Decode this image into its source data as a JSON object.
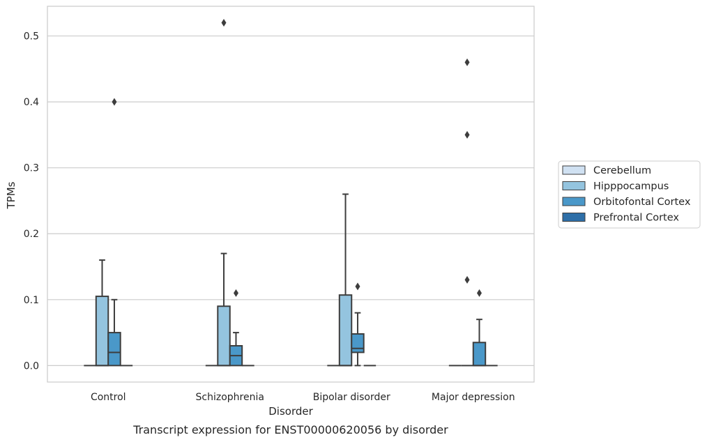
{
  "chart_data": {
    "type": "box",
    "title": "",
    "caption": "Transcript expression for ENST00000620056 by disorder",
    "xlabel": "Disorder",
    "ylabel": "TPMs",
    "ylim": [
      -0.025,
      0.545
    ],
    "yticks": [
      "0.0",
      "0.1",
      "0.2",
      "0.3",
      "0.4",
      "0.5"
    ],
    "grid": "horizontal",
    "legend_position": "right",
    "categories": [
      "Control",
      "Schizophrenia",
      "Bipolar disorder",
      "Major depression"
    ],
    "series": [
      {
        "name": "Cerebellum",
        "color": "#d0e1f2",
        "boxes": [
          {
            "q1": 0,
            "median": 0,
            "q3": 0,
            "whisker_low": 0,
            "whisker_high": 0,
            "outliers": []
          },
          {
            "q1": 0,
            "median": 0,
            "q3": 0,
            "whisker_low": 0,
            "whisker_high": 0,
            "outliers": []
          },
          {
            "q1": 0,
            "median": 0,
            "q3": 0,
            "whisker_low": 0,
            "whisker_high": 0,
            "outliers": []
          },
          {
            "q1": 0,
            "median": 0,
            "q3": 0,
            "whisker_low": 0,
            "whisker_high": 0,
            "outliers": []
          }
        ]
      },
      {
        "name": "Hipppocampus",
        "color": "#94c4df",
        "boxes": [
          {
            "q1": 0,
            "median": 0,
            "q3": 0.105,
            "whisker_low": 0,
            "whisker_high": 0.16,
            "outliers": []
          },
          {
            "q1": 0,
            "median": 0,
            "q3": 0.09,
            "whisker_low": 0,
            "whisker_high": 0.17,
            "outliers": [
              0.52
            ]
          },
          {
            "q1": 0,
            "median": 0,
            "q3": 0.107,
            "whisker_low": 0,
            "whisker_high": 0.26,
            "outliers": []
          },
          {
            "q1": 0,
            "median": 0,
            "q3": 0,
            "whisker_low": 0,
            "whisker_high": 0,
            "outliers": [
              0.46,
              0.35,
              0.13
            ]
          }
        ]
      },
      {
        "name": "Orbitofontal Cortex",
        "color": "#4a98c9",
        "boxes": [
          {
            "q1": 0,
            "median": 0.02,
            "q3": 0.05,
            "whisker_low": 0,
            "whisker_high": 0.1,
            "outliers": [
              0.4
            ]
          },
          {
            "q1": 0,
            "median": 0.015,
            "q3": 0.03,
            "whisker_low": 0,
            "whisker_high": 0.05,
            "outliers": [
              0.11
            ]
          },
          {
            "q1": 0.02,
            "median": 0.026,
            "q3": 0.048,
            "whisker_low": 0,
            "whisker_high": 0.08,
            "outliers": [
              0.12
            ]
          },
          {
            "q1": 0,
            "median": 0,
            "q3": 0.035,
            "whisker_low": 0,
            "whisker_high": 0.07,
            "outliers": [
              0.11
            ]
          }
        ]
      },
      {
        "name": "Prefrontal Cortex",
        "color": "#2e6fa8",
        "boxes": [
          {
            "q1": 0,
            "median": 0,
            "q3": 0,
            "whisker_low": 0,
            "whisker_high": 0,
            "outliers": []
          },
          {
            "q1": 0,
            "median": 0,
            "q3": 0,
            "whisker_low": 0,
            "whisker_high": 0,
            "outliers": []
          },
          {
            "q1": 0,
            "median": 0,
            "q3": 0,
            "whisker_low": 0,
            "whisker_high": 0,
            "outliers": []
          },
          {
            "q1": 0,
            "median": 0,
            "q3": 0,
            "whisker_low": 0,
            "whisker_high": 0,
            "outliers": []
          }
        ]
      }
    ]
  }
}
